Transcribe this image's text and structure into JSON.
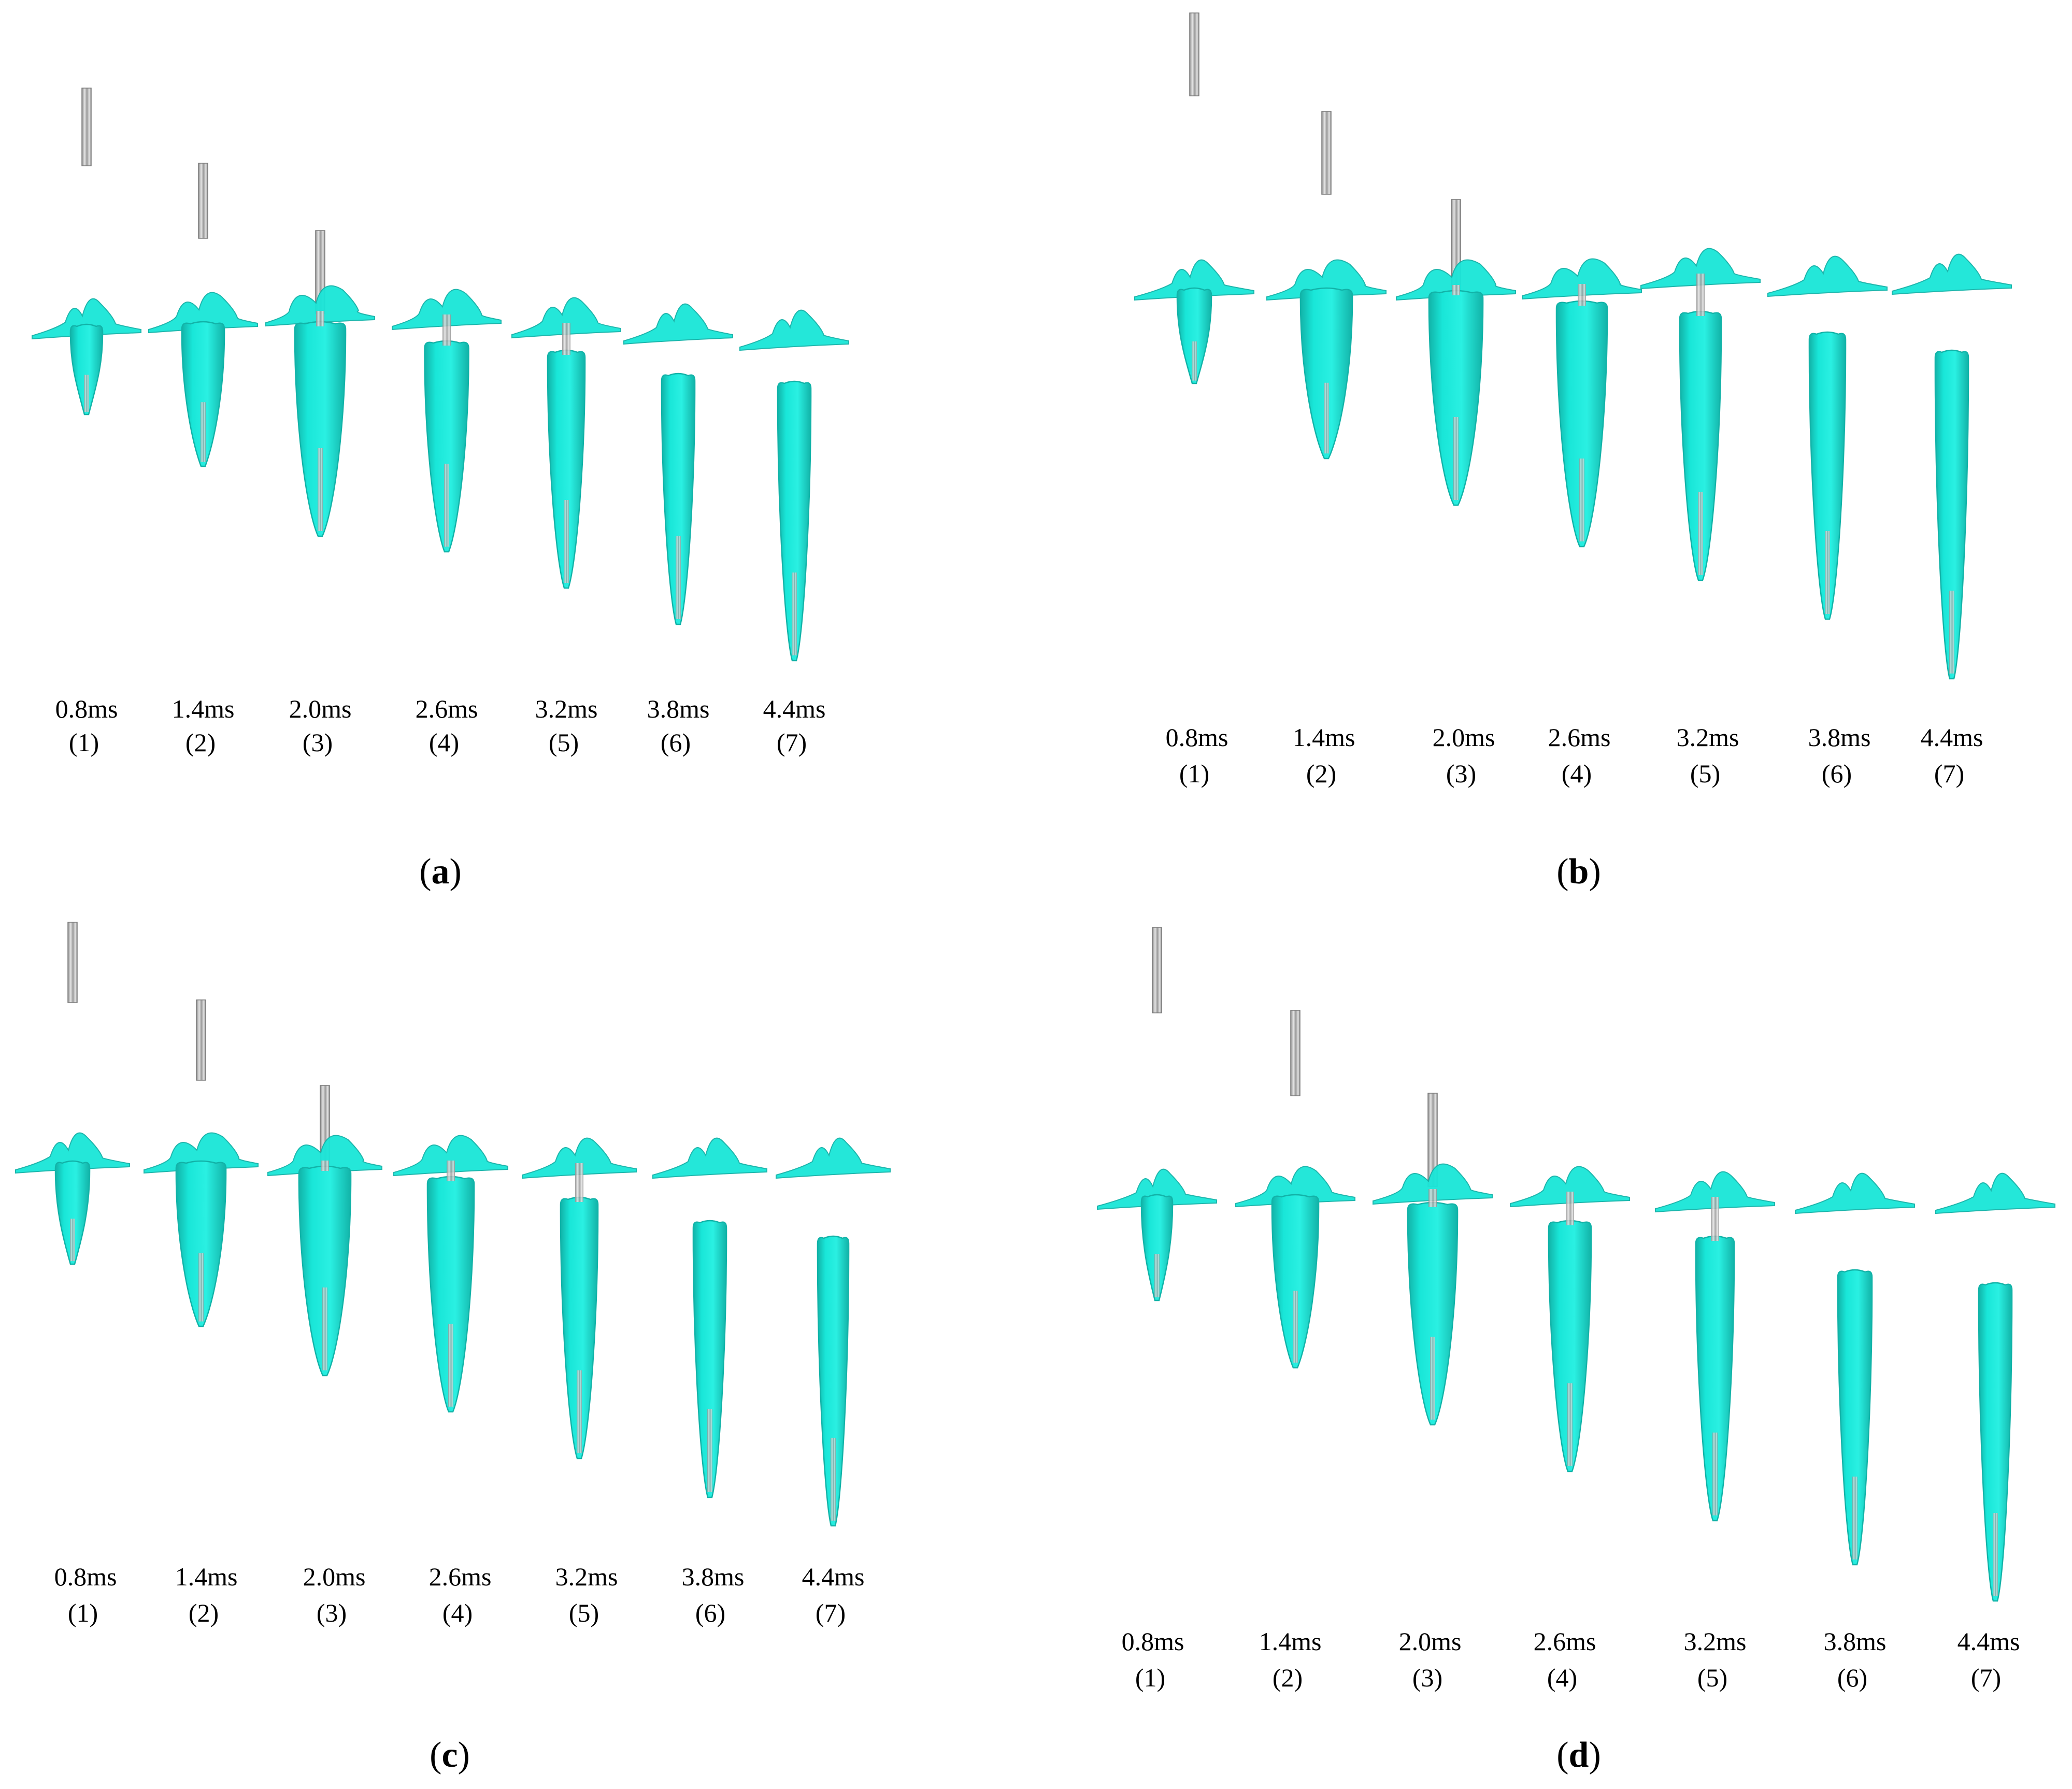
{
  "figure": {
    "colors": {
      "cavity": "#19e6d8",
      "cavity_edge": "#12b3a8",
      "projectile_light": "#e4e4e4",
      "projectile_dark": "#8c8c8c",
      "background": "#ffffff"
    },
    "panels": [
      {
        "id": "a",
        "label_parts": [
          "(",
          "a",
          ")"
        ],
        "frames": [
          {
            "time": "0.8ms",
            "index": "(1)"
          },
          {
            "time": "1.4ms",
            "index": "(2)"
          },
          {
            "time": "2.0ms",
            "index": "(3)"
          },
          {
            "time": "2.6ms",
            "index": "(4)"
          },
          {
            "time": "3.2ms",
            "index": "(5)"
          },
          {
            "time": "3.8ms",
            "index": "(6)"
          },
          {
            "time": "4.4ms",
            "index": "(7)"
          }
        ]
      },
      {
        "id": "b",
        "label_parts": [
          "(",
          "b",
          ")"
        ],
        "frames": [
          {
            "time": "0.8ms",
            "index": "(1)"
          },
          {
            "time": "1.4ms",
            "index": "(2)"
          },
          {
            "time": "2.0ms",
            "index": "(3)"
          },
          {
            "time": "2.6ms",
            "index": "(4)"
          },
          {
            "time": "3.2ms",
            "index": "(5)"
          },
          {
            "time": "3.8ms",
            "index": "(6)"
          },
          {
            "time": "4.4ms",
            "index": "(7)"
          }
        ]
      },
      {
        "id": "c",
        "label_parts": [
          "(",
          "c",
          ")"
        ],
        "frames": [
          {
            "time": "0.8ms",
            "index": "(1)"
          },
          {
            "time": "1.4ms",
            "index": "(2)"
          },
          {
            "time": "2.0ms",
            "index": "(3)"
          },
          {
            "time": "2.6ms",
            "index": "(4)"
          },
          {
            "time": "3.2ms",
            "index": "(5)"
          },
          {
            "time": "3.8ms",
            "index": "(6)"
          },
          {
            "time": "4.4ms",
            "index": "(7)"
          }
        ]
      },
      {
        "id": "d",
        "label_parts": [
          "(",
          "d",
          ")"
        ],
        "frames": [
          {
            "time": "0.8ms",
            "index": "(1)"
          },
          {
            "time": "1.4ms",
            "index": "(2)"
          },
          {
            "time": "2.0ms",
            "index": "(3)"
          },
          {
            "time": "2.6ms",
            "index": "(4)"
          },
          {
            "time": "3.2ms",
            "index": "(5)"
          },
          {
            "time": "3.8ms",
            "index": "(6)"
          },
          {
            "time": "4.4ms",
            "index": "(7)"
          }
        ]
      }
    ]
  }
}
